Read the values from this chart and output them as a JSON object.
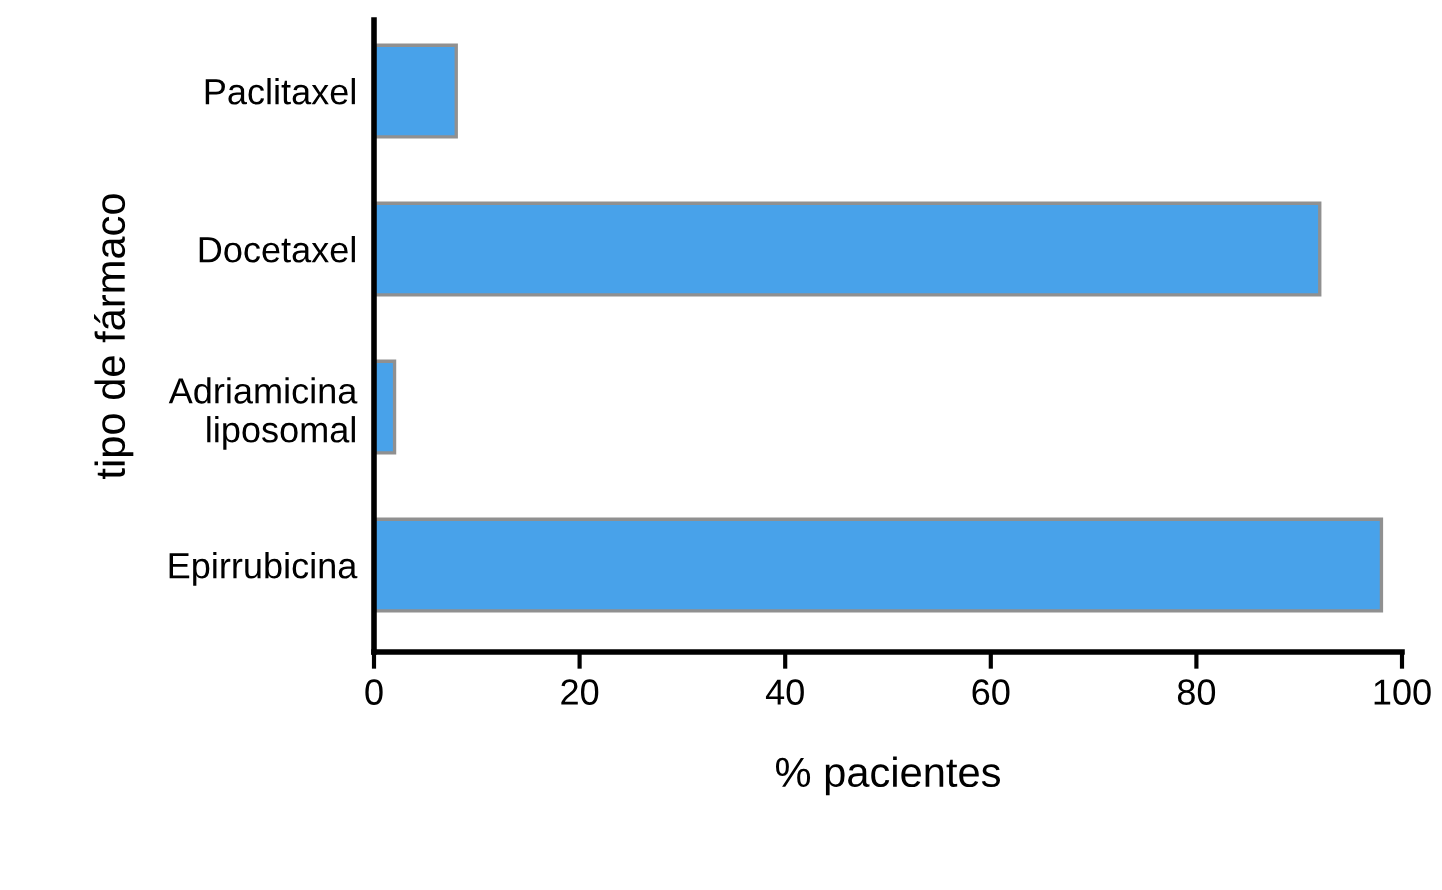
{
  "chart_data": {
    "type": "bar",
    "orientation": "horizontal",
    "categories": [
      "Paclitaxel",
      "Docetaxel",
      "Adriamicina\nliposomal",
      "Epirrubicina"
    ],
    "values": [
      8,
      92,
      2,
      98
    ],
    "color": "#48a2ea",
    "xlabel": "% pacientes",
    "ylabel": "tipo de fármaco",
    "xlim": [
      0,
      100
    ],
    "xticks": [
      0,
      20,
      40,
      60,
      80,
      100
    ],
    "grid": false,
    "legend": false
  }
}
